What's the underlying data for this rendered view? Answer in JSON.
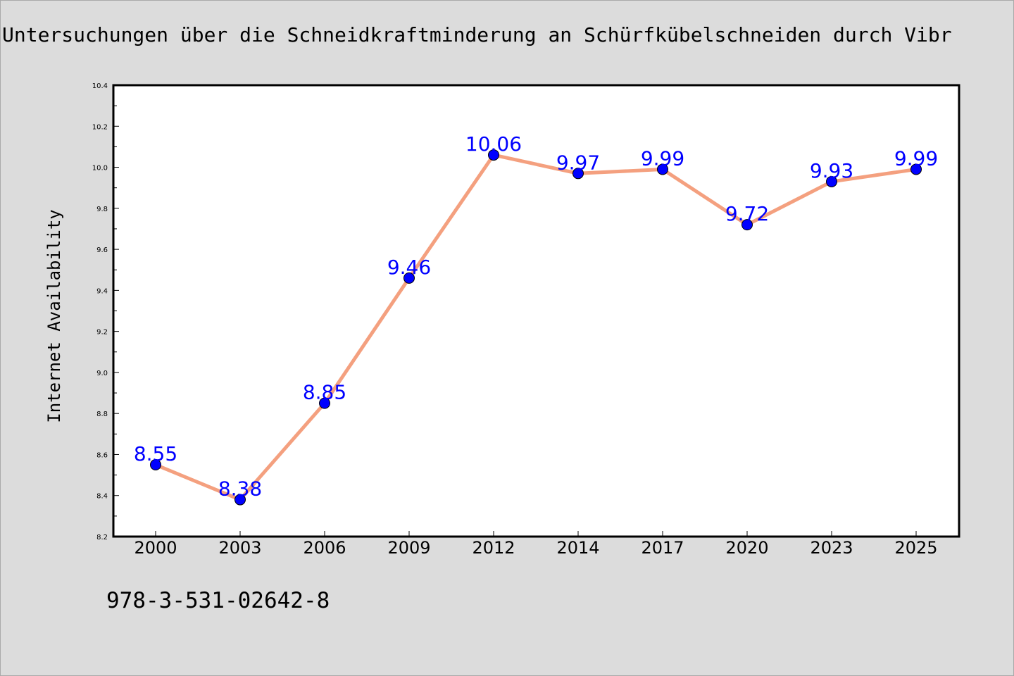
{
  "chart_data": {
    "type": "line",
    "title": "Untersuchungen über die Schneidkraftminderung an Schürfkübelschneiden durch Vibr",
    "xlabel": "",
    "ylabel": "Internet Availability",
    "categories": [
      "2000",
      "2003",
      "2006",
      "2009",
      "2012",
      "2014",
      "2017",
      "2020",
      "2023",
      "2025"
    ],
    "series": [
      {
        "values": [
          8.55,
          8.38,
          8.85,
          9.46,
          10.06,
          9.97,
          9.99,
          9.72,
          9.93,
          9.99
        ]
      }
    ],
    "data_labels": [
      "8.55",
      "8.38",
      "8.85",
      "9.46",
      "10.06",
      "9.97",
      "9.99",
      "9.72",
      "9.93",
      "9.99"
    ],
    "ylim": [
      8.2,
      10.4
    ],
    "y_ticks": [
      "8.2",
      "8.4",
      "8.6",
      "8.8",
      "9.0",
      "9.2",
      "9.4",
      "9.6",
      "9.8",
      "10.0",
      "10.2",
      "10.4"
    ],
    "grid": false,
    "colors": {
      "line": "#f4a07f",
      "marker": "#0000ff",
      "label": "#0000ff",
      "background": "#dcdcdc",
      "plot_area": "#ffffff"
    }
  },
  "footer": {
    "isbn": "978-3-531-02642-8"
  }
}
